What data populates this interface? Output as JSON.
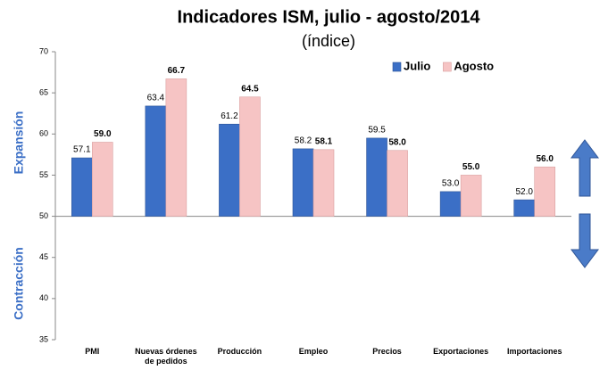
{
  "chart_data": {
    "type": "bar",
    "title": "Indicadores ISM, julio - agosto/2014",
    "subtitle": "(índice)",
    "annotations": [
      "Expansión",
      "Contracción"
    ],
    "categories": [
      "PMI",
      "Nuevas órdenes de pedidos",
      "Producción",
      "Empleo",
      "Precios",
      "Exportaciones",
      "Importaciones"
    ],
    "series": [
      {
        "name": "Julio",
        "color": "#3b6fc6",
        "values": [
          57.1,
          63.4,
          61.2,
          58.2,
          59.5,
          53.0,
          52.0
        ],
        "value_labels": [
          "57.1",
          "63.4",
          "61.2",
          "58.2",
          "59.5",
          "53.0",
          "52.0"
        ]
      },
      {
        "name": "Agosto",
        "color": "#f6c4c4",
        "values": [
          59.0,
          66.7,
          64.5,
          58.1,
          58.0,
          55.0,
          56.0
        ],
        "value_labels": [
          "59.0",
          "66.7",
          "64.5",
          "58.1",
          "58.0",
          "55.0",
          "56.0"
        ]
      }
    ],
    "baseline": 50,
    "ylim": [
      35,
      70
    ],
    "yticks": [
      35,
      40,
      45,
      50,
      55,
      60,
      65,
      70
    ],
    "grid": false,
    "legend": "top-right"
  }
}
